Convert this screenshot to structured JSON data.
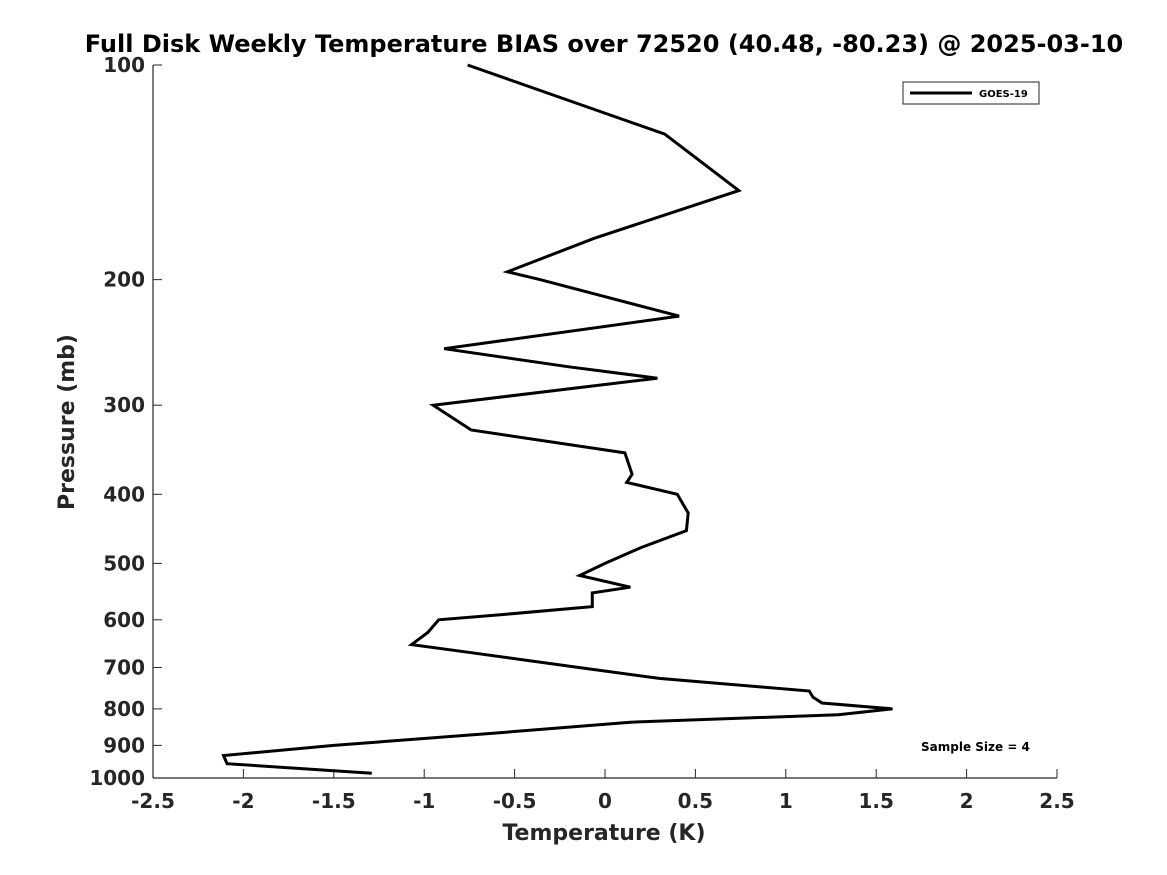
{
  "chart_data": {
    "type": "line",
    "title": "Full Disk Weekly Temperature BIAS over 72520 (40.48, -80.23) @ 2025-03-10",
    "xlabel": "Temperature (K)",
    "ylabel": "Pressure (mb)",
    "xlim": [
      -2.5,
      2.5
    ],
    "ylim": [
      1000,
      100
    ],
    "y_scale": "log",
    "y_reversed": true,
    "x_ticks": [
      -2.5,
      -2,
      -1.5,
      -1,
      -0.5,
      0,
      0.5,
      1,
      1.5,
      2,
      2.5
    ],
    "x_tick_labels": [
      "-2.5",
      "-2",
      "-1.5",
      "-1",
      "-0.5",
      "0",
      "0.5",
      "1",
      "1.5",
      "2",
      "2.5"
    ],
    "y_ticks": [
      100,
      200,
      300,
      400,
      500,
      600,
      700,
      800,
      900,
      1000
    ],
    "y_tick_labels": [
      "100",
      "200",
      "300",
      "400",
      "500",
      "600",
      "700",
      "800",
      "900",
      "1000"
    ],
    "grid": false,
    "legend_position": "top-right",
    "series": [
      {
        "name": "GOES-19",
        "color": "#000000",
        "x": [
          -0.76,
          0.33,
          0.74,
          -0.06,
          -0.54,
          -0.36,
          0.41,
          -0.89,
          -0.2,
          0.29,
          -0.95,
          -0.74,
          0.11,
          0.15,
          0.12,
          0.4,
          0.46,
          0.45,
          0.2,
          0.0,
          -0.14,
          0.14,
          -0.07,
          -0.07,
          -0.57,
          -0.92,
          -0.98,
          -1.07,
          -0.78,
          -0.14,
          0.3,
          1.13,
          1.15,
          1.2,
          1.59,
          1.29,
          0.14,
          -0.61,
          -1.5,
          -2.11,
          -2.09,
          -1.29
        ],
        "y": [
          100,
          125,
          150,
          175,
          195,
          200,
          225,
          250,
          265,
          275,
          300,
          325,
          350,
          375,
          385,
          400,
          425,
          450,
          475,
          500,
          520,
          540,
          550,
          575,
          590,
          600,
          625,
          650,
          665,
          700,
          725,
          755,
          770,
          785,
          800,
          815,
          835,
          865,
          900,
          930,
          955,
          985
        ]
      }
    ],
    "annotations": [
      "Sample Size = 4"
    ]
  }
}
